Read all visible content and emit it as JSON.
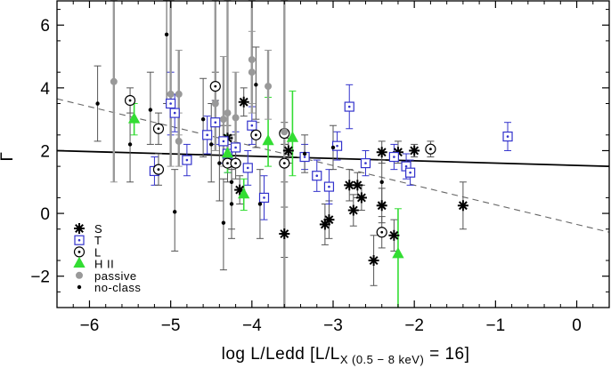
{
  "chart_data": {
    "type": "scatter",
    "title": "",
    "ylabel": "Γ",
    "xlabel": {
      "main": "log L/Ledd [L/L",
      "subscript_x": "X",
      "subscript_band": "(0.5 − 8 keV)",
      "tail": " = 16]"
    },
    "xlim": [
      -6.4,
      0.4
    ],
    "ylim": [
      -3.0,
      6.8
    ],
    "xticks": [
      -6,
      -5,
      -4,
      -3,
      -2,
      -1,
      0
    ],
    "xtick_labels": [
      "−6",
      "−5",
      "−4",
      "−3",
      "−2",
      "−1",
      "0"
    ],
    "yticks": [
      -2,
      0,
      2,
      4,
      6
    ],
    "ytick_labels": [
      "−2",
      "0",
      "2",
      "4",
      "6"
    ],
    "fits": [
      {
        "name": "solid fit",
        "style": "solid",
        "x": [
          -6.4,
          0.4
        ],
        "y": [
          2.0,
          1.5
        ]
      },
      {
        "name": "dashed fit",
        "style": "dashed",
        "x": [
          -6.4,
          0.4
        ],
        "y": [
          3.65,
          -0.6
        ]
      }
    ],
    "legend": {
      "placement": "bottom-left",
      "entries": [
        {
          "label": "S",
          "marker": "asterisk",
          "color": "#000000"
        },
        {
          "label": "T",
          "marker": "square-dot",
          "color": "#3333cc"
        },
        {
          "label": "L",
          "marker": "circle-dot",
          "color": "#000000"
        },
        {
          "label": "H II",
          "marker": "triangle",
          "color": "#33dd33"
        },
        {
          "label": "passive",
          "marker": "filled-circle",
          "color": "#999999"
        },
        {
          "label": "no-class",
          "marker": "small-dot",
          "color": "#000000"
        }
      ]
    },
    "series": [
      {
        "name": "S",
        "marker": "asterisk",
        "color": "#000000",
        "points": [
          {
            "x": -4.3,
            "y": 2.4,
            "lo": 2.0,
            "hi": 2.8
          },
          {
            "x": -4.1,
            "y": 3.55,
            "lo": 3.1,
            "hi": 4.0
          },
          {
            "x": -4.15,
            "y": 0.75,
            "lo": 0.3,
            "hi": 1.2
          },
          {
            "x": -3.6,
            "y": -0.65,
            "lo": -1.4,
            "hi": 0.2
          },
          {
            "x": -3.55,
            "y": 2.0,
            "lo": 1.6,
            "hi": 2.4
          },
          {
            "x": -3.1,
            "y": -0.35,
            "lo": -1.0,
            "hi": 0.3
          },
          {
            "x": -3.05,
            "y": -0.2,
            "lo": -0.8,
            "hi": 0.4
          },
          {
            "x": -2.8,
            "y": 0.9,
            "lo": 0.4,
            "hi": 1.4
          },
          {
            "x": -2.75,
            "y": 0.1,
            "lo": -0.4,
            "hi": 0.6
          },
          {
            "x": -2.7,
            "y": 0.9,
            "lo": 0.5,
            "hi": 1.3
          },
          {
            "x": -2.65,
            "y": 0.5,
            "lo": 0.1,
            "hi": 0.9
          },
          {
            "x": -2.5,
            "y": -1.5,
            "lo": -2.3,
            "hi": -0.7
          },
          {
            "x": -2.4,
            "y": 1.95,
            "lo": 1.6,
            "hi": 2.3
          },
          {
            "x": -2.4,
            "y": 0.25,
            "lo": -0.3,
            "hi": 0.8
          },
          {
            "x": -2.25,
            "y": -0.7,
            "lo": -1.2,
            "hi": -0.2
          },
          {
            "x": -2.2,
            "y": 1.95,
            "lo": 1.6,
            "hi": 2.3
          },
          {
            "x": -2.0,
            "y": 2.0,
            "lo": 1.8,
            "hi": 2.2
          },
          {
            "x": -1.4,
            "y": 0.25,
            "lo": -0.5,
            "hi": 1.0
          }
        ]
      },
      {
        "name": "T",
        "marker": "square-dot",
        "color": "#3333cc",
        "points": [
          {
            "x": -5.2,
            "y": 1.35,
            "lo": 0.9,
            "hi": 1.8
          },
          {
            "x": -5.0,
            "y": 3.5,
            "lo": 2.5,
            "hi": 4.5
          },
          {
            "x": -4.95,
            "y": 3.2,
            "lo": 2.6,
            "hi": 3.8
          },
          {
            "x": -4.8,
            "y": 1.7,
            "lo": 1.2,
            "hi": 2.2
          },
          {
            "x": -4.55,
            "y": 2.5,
            "lo": 1.9,
            "hi": 3.1
          },
          {
            "x": -4.45,
            "y": 2.9,
            "lo": 2.2,
            "hi": 3.6
          },
          {
            "x": -4.35,
            "y": 2.3,
            "lo": 1.6,
            "hi": 3.0
          },
          {
            "x": -4.3,
            "y": 1.9,
            "lo": 1.3,
            "hi": 2.5
          },
          {
            "x": -4.2,
            "y": 2.1,
            "lo": 1.6,
            "hi": 2.6
          },
          {
            "x": -4.05,
            "y": 1.45,
            "lo": 0.9,
            "hi": 2.0
          },
          {
            "x": -4.0,
            "y": 2.8,
            "lo": 2.2,
            "hi": 3.4
          },
          {
            "x": -3.85,
            "y": 0.5,
            "lo": -0.2,
            "hi": 1.2
          },
          {
            "x": -3.35,
            "y": 1.8,
            "lo": 1.4,
            "hi": 2.2
          },
          {
            "x": -3.2,
            "y": 1.2,
            "lo": 0.7,
            "hi": 1.7
          },
          {
            "x": -3.05,
            "y": 0.85,
            "lo": 0.3,
            "hi": 1.4
          },
          {
            "x": -2.95,
            "y": 2.15,
            "lo": 1.7,
            "hi": 2.6
          },
          {
            "x": -2.8,
            "y": 3.4,
            "lo": 2.7,
            "hi": 4.1
          },
          {
            "x": -2.6,
            "y": 1.6,
            "lo": 1.2,
            "hi": 2.0
          },
          {
            "x": -2.25,
            "y": 1.8,
            "lo": 1.4,
            "hi": 2.2
          },
          {
            "x": -2.1,
            "y": 1.5,
            "lo": 1.1,
            "hi": 1.9
          },
          {
            "x": -2.05,
            "y": 1.3,
            "lo": 0.9,
            "hi": 1.7
          },
          {
            "x": -0.85,
            "y": 2.45,
            "lo": 2.0,
            "hi": 2.9
          }
        ]
      },
      {
        "name": "L",
        "marker": "circle-dot",
        "color": "#000000",
        "points": [
          {
            "x": -5.5,
            "y": 3.6,
            "lo": 3.2,
            "hi": 4.0
          },
          {
            "x": -5.15,
            "y": 2.7,
            "lo": 2.2,
            "hi": 3.2
          },
          {
            "x": -5.15,
            "y": 1.4,
            "lo": 0.9,
            "hi": 1.9
          },
          {
            "x": -4.45,
            "y": 4.05,
            "lo": 3.6,
            "hi": 4.5
          },
          {
            "x": -4.3,
            "y": 1.6,
            "lo": 1.0,
            "hi": 2.2
          },
          {
            "x": -4.2,
            "y": 1.6,
            "lo": 1.1,
            "hi": 2.1
          },
          {
            "x": -3.95,
            "y": 2.5,
            "lo": 2.1,
            "hi": 2.9
          },
          {
            "x": -3.6,
            "y": 2.55,
            "lo": 2.2,
            "hi": 2.9
          },
          {
            "x": -3.6,
            "y": 1.6,
            "lo": 1.0,
            "hi": 2.2
          },
          {
            "x": -2.4,
            "y": -0.6,
            "lo": -1.1,
            "hi": -0.1
          },
          {
            "x": -1.8,
            "y": 2.05,
            "lo": 1.8,
            "hi": 2.3
          }
        ]
      },
      {
        "name": "H II",
        "marker": "triangle",
        "color": "#33dd33",
        "points": [
          {
            "x": -5.45,
            "y": 3.0,
            "lo": 2.5,
            "hi": 3.5
          },
          {
            "x": -4.3,
            "y": 1.9,
            "lo": 1.3,
            "hi": 2.5
          },
          {
            "x": -4.1,
            "y": 0.6,
            "lo": 0.1,
            "hi": 1.1
          },
          {
            "x": -3.8,
            "y": 2.3,
            "lo": 1.5,
            "hi": 3.7
          },
          {
            "x": -3.5,
            "y": 2.4,
            "lo": 1.2,
            "hi": 3.9
          },
          {
            "x": -2.2,
            "y": -1.3,
            "lo": -3.0,
            "hi": 0.15
          }
        ]
      },
      {
        "name": "passive",
        "marker": "filled-circle",
        "color": "#999999",
        "points": [
          {
            "x": -5.7,
            "y": 4.2,
            "lo": 1.0,
            "hi": 6.8
          },
          {
            "x": -5.0,
            "y": 3.8,
            "lo": 1.5,
            "hi": 6.8
          },
          {
            "x": -4.9,
            "y": 3.8,
            "lo": 2.5,
            "hi": 5.2
          },
          {
            "x": -4.9,
            "y": 2.3,
            "lo": 1.5,
            "hi": 3.2
          },
          {
            "x": -4.45,
            "y": 3.5,
            "lo": 2.0,
            "hi": 6.8
          },
          {
            "x": -4.35,
            "y": 3.0,
            "lo": 1.5,
            "hi": 5.0
          },
          {
            "x": -4.3,
            "y": 3.2,
            "lo": 1.8,
            "hi": 6.8
          },
          {
            "x": -4.2,
            "y": 3.05,
            "lo": 2.0,
            "hi": 4.5
          },
          {
            "x": -4.0,
            "y": 4.9,
            "lo": 3.5,
            "hi": 6.8
          },
          {
            "x": -4.0,
            "y": 4.5,
            "lo": 3.2,
            "hi": 5.8
          },
          {
            "x": -3.8,
            "y": 4.05,
            "lo": 3.0,
            "hi": 5.2
          },
          {
            "x": -3.6,
            "y": 2.6,
            "lo": -3.0,
            "hi": 6.8
          }
        ]
      },
      {
        "name": "no-class",
        "marker": "small-dot",
        "color": "#000000",
        "points": [
          {
            "x": -5.9,
            "y": 3.5,
            "lo": 2.3,
            "hi": 4.7
          },
          {
            "x": -5.5,
            "y": 2.2,
            "lo": 1.0,
            "hi": 3.6
          },
          {
            "x": -5.25,
            "y": 3.3,
            "lo": 2.2,
            "hi": 4.5
          },
          {
            "x": -5.05,
            "y": 5.7,
            "lo": 3.5,
            "hi": 6.8
          },
          {
            "x": -4.95,
            "y": 0.05,
            "lo": -1.2,
            "hi": 1.4
          },
          {
            "x": -4.6,
            "y": 3.0,
            "lo": 1.8,
            "hi": 4.3
          },
          {
            "x": -4.5,
            "y": 2.2,
            "lo": 1.0,
            "hi": 3.5
          },
          {
            "x": -4.4,
            "y": 1.6,
            "lo": 0.4,
            "hi": 2.8
          },
          {
            "x": -4.35,
            "y": -0.3,
            "lo": -1.8,
            "hi": 1.1
          },
          {
            "x": -4.25,
            "y": 1.0,
            "lo": -0.5,
            "hi": 2.5
          },
          {
            "x": -4.25,
            "y": 0.3,
            "lo": -0.8,
            "hi": 1.4
          },
          {
            "x": -3.95,
            "y": 4.1,
            "lo": 3.0,
            "hi": 5.3
          },
          {
            "x": -3.9,
            "y": 0.3,
            "lo": -0.8,
            "hi": 1.4
          },
          {
            "x": -3.35,
            "y": 1.9,
            "lo": 1.3,
            "hi": 2.5
          },
          {
            "x": -3.0,
            "y": 2.1,
            "lo": 1.4,
            "hi": 2.8
          },
          {
            "x": -2.4,
            "y": 1.0,
            "lo": 0.3,
            "hi": 1.7
          }
        ]
      }
    ]
  }
}
